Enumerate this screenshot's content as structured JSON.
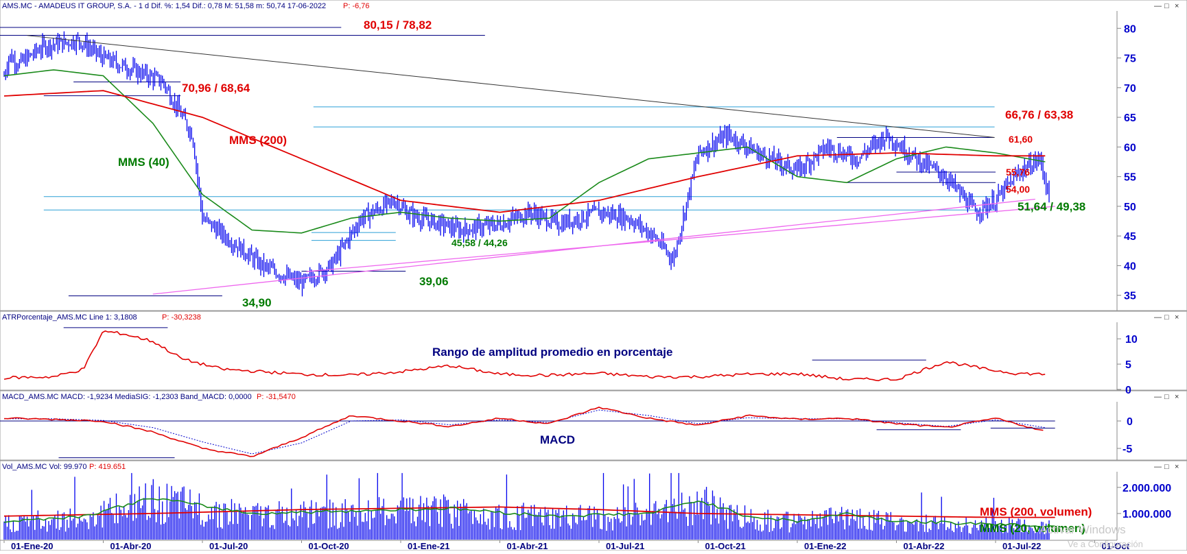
{
  "panels": {
    "price": {
      "header": "AMS.MC - AMADEUS IT GROUP, S.A. -  1 d  Dif. %: 1,54  Dif.: 0,78  M: 51,58  m: 50,74  17-06-2022",
      "header_p": "P: -6,76"
    },
    "atr": {
      "header": "ATRPorcentaje_AMS.MC  Line 1: 3,1808",
      "header_p": "P: -30,3238",
      "title": "Rango de amplitud promedio en porcentaje"
    },
    "macd": {
      "header": "MACD_AMS.MC  MACD: -1,9234  MediaSIG: -1,2303  Band_MACD: 0,0000",
      "header_p": "P: -31,5470",
      "title": "MACD"
    },
    "volume": {
      "header": "Vol_AMS.MC  Vol: 99.970",
      "header_p": "P: 419.651"
    }
  },
  "annotations": {
    "a8015": "80,15 / 78,82",
    "a7096": "70,96 / 68,64",
    "a6676": "66,76 / 63,38",
    "a6160": "61,60",
    "a5576": "55,76",
    "a5400": "54,00",
    "a5164": "51,64 / 49,38",
    "a4558": "45,58 / 44,26",
    "a3906": "39,06",
    "a3490": "34,90",
    "mms200": "MMS (200)",
    "mms40": "MMS (40)",
    "mms200v": "MMS (200, volumen)",
    "mms20v": "MMS (20, volumen)"
  },
  "watermark": "Activar Windows",
  "watermark2": "Ve a Configuración",
  "window_buttons": [
    "—",
    "□",
    "×"
  ],
  "colors": {
    "price_bars": "#0000ee",
    "mms40": "#1a8a1a",
    "mms200": "#e00000",
    "trendline": "#333333",
    "support": "#ee66ee",
    "levels": "#2a9fd6",
    "annot_lines": "#000080"
  },
  "chart_data": {
    "type": "line",
    "title": "AMS.MC - AMADEUS IT GROUP, S.A.",
    "x_ticks": [
      "01-Ene-20",
      "01-Abr-20",
      "01-Jul-20",
      "01-Oct-20",
      "01-Ene-21",
      "01-Abr-21",
      "01-Jul-21",
      "01-Oct-21",
      "01-Ene-22",
      "01-Abr-22",
      "01-Jul-22",
      "01-Oct"
    ],
    "price_axis": {
      "ticks": [
        80,
        75,
        70,
        65,
        60,
        55,
        50,
        45,
        40,
        35
      ],
      "ylim": [
        33,
        82
      ]
    },
    "atr_axis": {
      "ticks": [
        10,
        5,
        0
      ],
      "ylim": [
        0,
        13
      ]
    },
    "macd_axis": {
      "ticks": [
        0,
        -5
      ],
      "ylim": [
        -7,
        3.5
      ]
    },
    "volume_axis": {
      "ticks": [
        "2.000.000",
        "1.000.000"
      ],
      "tick_values": [
        2000000,
        1000000
      ],
      "ylim": [
        0,
        2600000
      ]
    },
    "series": [
      {
        "name": "AMS.MC",
        "kind": "close",
        "x": [
          0,
          0.05,
          0.15,
          0.4,
          0.75,
          1.0,
          1.3,
          1.6,
          1.9,
          2.0,
          2.3,
          2.6,
          3.0,
          3.3,
          3.6,
          3.95,
          4.05,
          4.2,
          4.4,
          4.6,
          5.0,
          5.3,
          5.6,
          6.0,
          6.3,
          6.55,
          6.75,
          7.0,
          7.3,
          7.6,
          8.0,
          8.3,
          8.6,
          8.9,
          9.2,
          9.5,
          9.8,
          10.0,
          10.25,
          10.45,
          10.55
        ],
        "y": [
          72,
          75.4,
          74,
          77,
          78,
          75,
          73,
          71,
          62,
          48,
          44,
          40,
          37,
          40,
          48,
          51,
          49,
          48,
          47,
          46,
          47,
          49,
          47,
          49,
          48,
          45,
          41,
          59,
          62,
          59,
          56,
          60,
          58,
          62,
          58,
          55,
          49,
          51,
          56,
          58,
          50.8
        ]
      },
      {
        "name": "MMS (40)",
        "kind": "ma",
        "x": [
          0,
          0.5,
          1.0,
          1.5,
          2.0,
          2.5,
          3.0,
          3.5,
          4.0,
          4.5,
          5.0,
          5.5,
          6.0,
          6.5,
          7.0,
          7.5,
          8.0,
          8.5,
          9.0,
          9.5,
          10.0,
          10.5
        ],
        "y": [
          72,
          73,
          72,
          64,
          52,
          46,
          45.5,
          48,
          49,
          48,
          47.5,
          48,
          54,
          58,
          59,
          60,
          55,
          54,
          58,
          60,
          59,
          57.5
        ]
      },
      {
        "name": "MMS (200)",
        "kind": "ma",
        "x": [
          0,
          1.0,
          2.0,
          3.0,
          4.0,
          5.0,
          6.0,
          7.0,
          8.0,
          9.0,
          10.0,
          10.5
        ],
        "y": [
          68.6,
          69.5,
          65,
          58,
          51,
          49,
          51,
          55,
          58.5,
          59,
          58.5,
          58.5
        ]
      }
    ],
    "atr_series": {
      "name": "ATRPorcentaje_AMS.MC",
      "x": [
        0,
        0.5,
        0.8,
        1.0,
        1.2,
        1.5,
        1.8,
        2.2,
        3.0,
        3.5,
        4.0,
        4.5,
        5.0,
        5.5,
        6.0,
        6.5,
        7.0,
        7.5,
        8.0,
        8.5,
        9.0,
        9.5,
        9.9,
        10.2,
        10.5
      ],
      "y": [
        2.3,
        2.5,
        4,
        11.5,
        11,
        9.5,
        6,
        4,
        3,
        2.8,
        3.5,
        4.7,
        3,
        2.8,
        3.2,
        2.5,
        2.5,
        3,
        3.1,
        2,
        2,
        5.5,
        4,
        3.2,
        3
      ]
    },
    "macd_series": [
      {
        "name": "MACD",
        "x": [
          0,
          0.5,
          1.0,
          1.5,
          2.0,
          2.5,
          3.0,
          3.5,
          4.0,
          4.5,
          5.0,
          5.5,
          6.0,
          6.5,
          7.0,
          7.5,
          8.0,
          8.5,
          9.0,
          9.5,
          10.0,
          10.5
        ],
        "y": [
          0.5,
          0.3,
          0,
          -2,
          -5,
          -6.5,
          -3,
          1,
          0,
          -1,
          0.5,
          -0.5,
          2.5,
          0.5,
          -0.8,
          1,
          0.3,
          0.5,
          -0.5,
          -1.2,
          0.5,
          -1.9
        ]
      },
      {
        "name": "MediaSIG",
        "x": [
          0,
          0.5,
          1.0,
          1.5,
          2.0,
          2.5,
          3.0,
          3.5,
          4.0,
          4.5,
          5.0,
          5.5,
          6.0,
          6.5,
          7.0,
          7.5,
          8.0,
          8.5,
          9.0,
          9.5,
          10.0,
          10.5
        ],
        "y": [
          0.4,
          0.4,
          0.1,
          -1.2,
          -3.8,
          -6,
          -4,
          0,
          0.2,
          -0.7,
          0.2,
          -0.3,
          2,
          1,
          -0.5,
          0.6,
          0.4,
          0.4,
          -0.3,
          -1,
          0.2,
          -1.2
        ]
      }
    ],
    "volume_series": [
      {
        "name": "MMS (200, volumen)",
        "x": [
          0,
          1.5,
          3.0,
          4.0,
          5.0,
          6.0,
          7.0,
          8.0,
          9.0,
          10.0,
          10.6
        ],
        "y": [
          900000,
          1000000,
          1150000,
          1200000,
          1250000,
          1150000,
          1000000,
          950000,
          900000,
          850000,
          850000
        ]
      },
      {
        "name": "MMS (20, volumen)",
        "x": [
          0,
          0.8,
          1.5,
          2.5,
          3.5,
          4.5,
          5.5,
          6.5,
          7.0,
          7.5,
          8.0,
          8.5,
          9.0,
          10.0,
          10.6
        ],
        "y": [
          700000,
          900000,
          1600000,
          1000000,
          1100000,
          1200000,
          900000,
          1000000,
          1500000,
          900000,
          700000,
          1000000,
          700000,
          600000,
          500000
        ]
      }
    ]
  }
}
